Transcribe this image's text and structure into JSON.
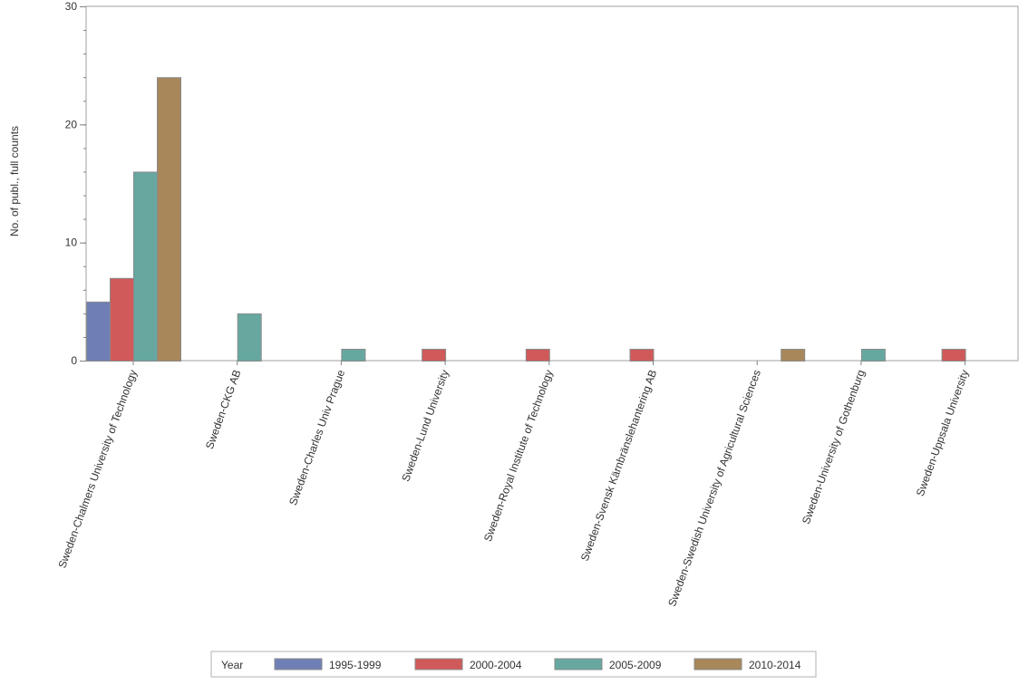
{
  "chart_data": {
    "type": "bar",
    "ylabel": "No. of publ., full counts",
    "xlabel": "",
    "ylim": [
      0,
      30
    ],
    "yticks": [
      0,
      10,
      20,
      30
    ],
    "grid": false,
    "legend_position": "bottom",
    "legend_title": "Year",
    "categories": [
      "Sweden-Chalmers University of Technology",
      "Sweden-CKG AB",
      "Sweden-Charles Univ Prague",
      "Sweden-Lund University",
      "Sweden-Royal Institute of Technology",
      "Sweden-Svensk Kärnbränslehantering AB",
      "Sweden-Swedish University of Agricultural Sciences",
      "Sweden-University of Gothenburg",
      "Sweden-Uppsala University"
    ],
    "series": [
      {
        "name": "1995-1999",
        "color": "#6f7fb5",
        "values": [
          5,
          0,
          0,
          0,
          0,
          0,
          0,
          0,
          0
        ]
      },
      {
        "name": "2000-2004",
        "color": "#d05a5a",
        "values": [
          7,
          0,
          0,
          1,
          1,
          1,
          0,
          0,
          1
        ]
      },
      {
        "name": "2005-2009",
        "color": "#66a8a0",
        "values": [
          16,
          4,
          1,
          0,
          0,
          0,
          0,
          1,
          0
        ]
      },
      {
        "name": "2010-2014",
        "color": "#a8875a",
        "values": [
          24,
          0,
          0,
          0,
          0,
          0,
          1,
          0,
          0
        ]
      }
    ]
  }
}
